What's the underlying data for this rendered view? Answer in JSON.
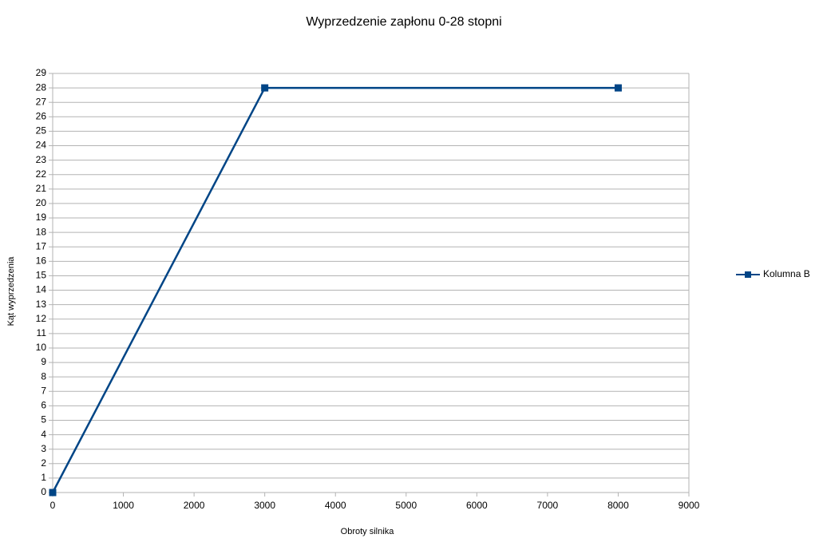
{
  "chart_data": {
    "type": "line",
    "title": "Wyprzedzenie zapłonu 0-28 stopni",
    "x_label": "Obroty silnika",
    "y_label": "Kąt wyprzedzenia",
    "x": [
      0,
      3000,
      8000
    ],
    "series": [
      {
        "name": "Kolumna B",
        "color": "#004586",
        "values": [
          0,
          28,
          28
        ]
      }
    ],
    "xlim": [
      0,
      9000
    ],
    "xticks": [
      0,
      1000,
      2000,
      3000,
      4000,
      5000,
      6000,
      7000,
      8000,
      9000
    ],
    "ylim": [
      0,
      29
    ],
    "yticks": [
      0,
      1,
      2,
      3,
      4,
      5,
      6,
      7,
      8,
      9,
      10,
      11,
      12,
      13,
      14,
      15,
      16,
      17,
      18,
      19,
      20,
      21,
      22,
      23,
      24,
      25,
      26,
      27,
      28,
      29
    ],
    "grid": true,
    "legend": "right"
  }
}
